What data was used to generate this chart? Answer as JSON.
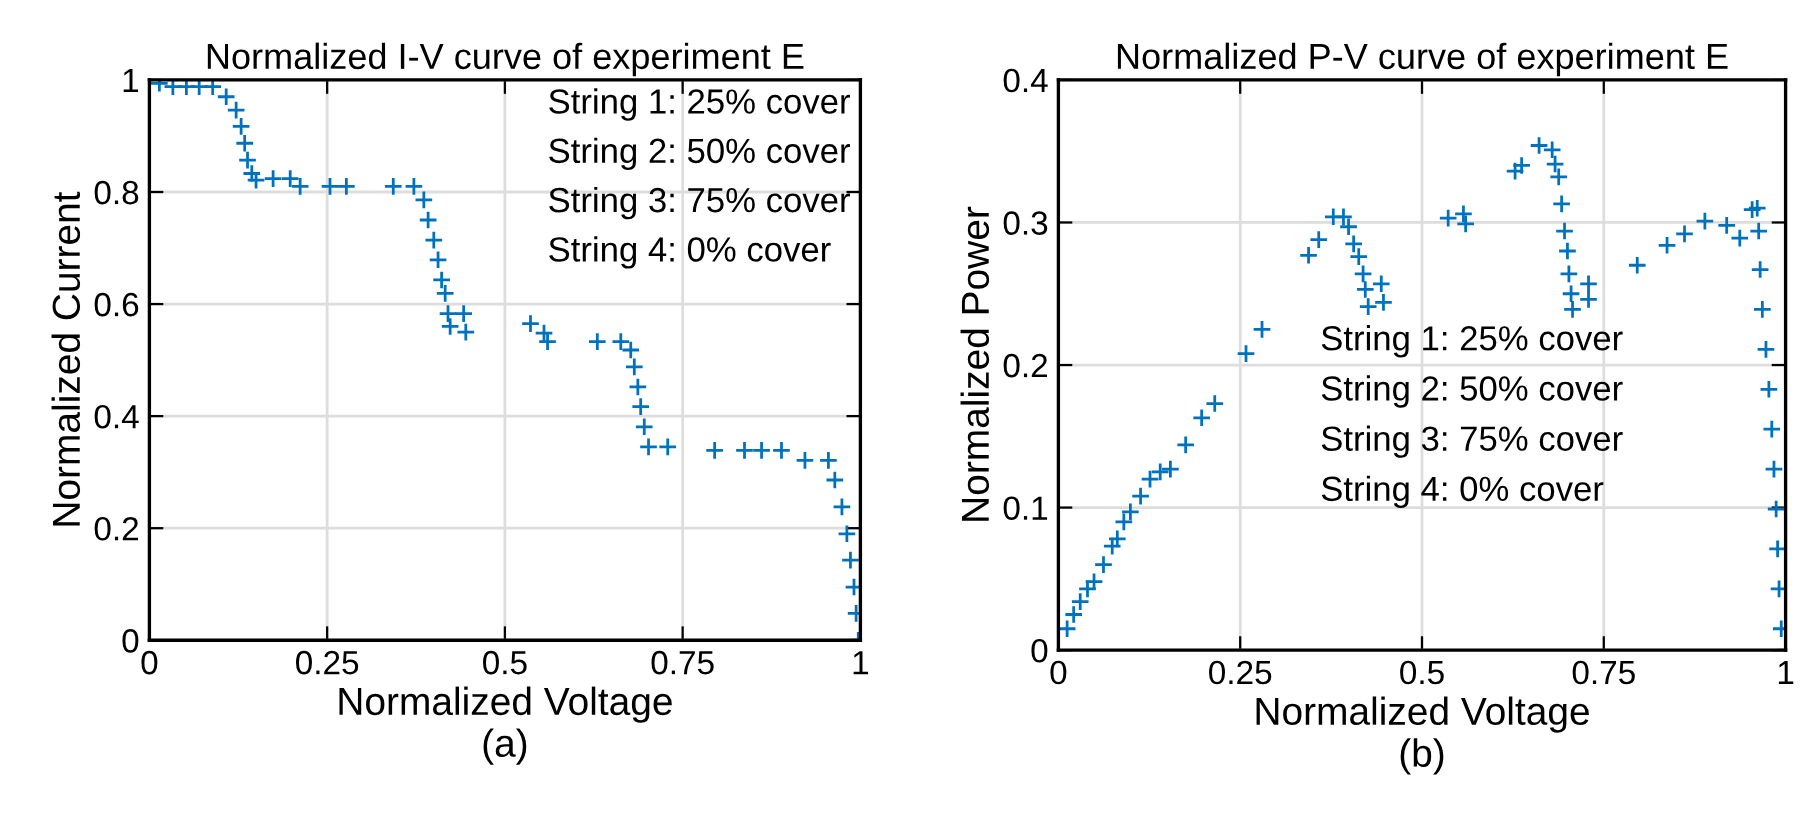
{
  "chart_data": [
    {
      "type": "scatter",
      "title": "Normalized I-V curve of experiment E",
      "xlabel": "Normalized Voltage\n(a)",
      "ylabel": "Normalized Current",
      "annotations": [
        "String 1: 25% cover",
        "String 2: 50% cover",
        "String 3: 75% cover",
        "String 4: 0% cover"
      ],
      "xlim": [
        0,
        1
      ],
      "ylim": [
        0,
        1
      ],
      "xticks": [
        0,
        0.25,
        0.5,
        0.75,
        1
      ],
      "yticks": [
        0,
        0.2,
        0.4,
        0.6,
        0.8,
        1
      ],
      "grid": true,
      "marker": "cross",
      "series": [
        {
          "color": "#0072bd",
          "x": [
            0.014,
            0.033,
            0.052,
            0.07,
            0.089,
            0.108,
            0.122,
            0.129,
            0.134,
            0.138,
            0.144,
            0.15,
            0.174,
            0.198,
            0.212,
            0.254,
            0.277,
            0.343,
            0.372,
            0.386,
            0.392,
            0.4,
            0.406,
            0.411,
            0.416,
            0.42,
            0.423,
            0.442,
            0.445,
            0.536,
            0.555,
            0.56,
            0.63,
            0.663,
            0.677,
            0.682,
            0.687,
            0.691,
            0.696,
            0.702,
            0.729,
            0.795,
            0.837,
            0.861,
            0.889,
            0.922,
            0.955,
            0.964,
            0.974,
            0.981,
            0.986,
            0.991,
            0.994,
            0.997
          ],
          "values": [
            0.994,
            0.988,
            0.988,
            0.988,
            0.988,
            0.97,
            0.946,
            0.917,
            0.887,
            0.857,
            0.833,
            0.821,
            0.824,
            0.824,
            0.81,
            0.81,
            0.81,
            0.81,
            0.81,
            0.786,
            0.75,
            0.714,
            0.679,
            0.643,
            0.619,
            0.583,
            0.56,
            0.583,
            0.55,
            0.565,
            0.548,
            0.533,
            0.533,
            0.533,
            0.518,
            0.488,
            0.452,
            0.417,
            0.381,
            0.345,
            0.345,
            0.339,
            0.339,
            0.339,
            0.339,
            0.321,
            0.321,
            0.286,
            0.238,
            0.19,
            0.143,
            0.095,
            0.048,
            0.0
          ]
        }
      ]
    },
    {
      "type": "scatter",
      "title": "Normalized P-V curve of experiment E",
      "xlabel": "Normalized Voltage\n(b)",
      "ylabel": "Normalized Power",
      "annotations": [
        "String 1: 25% cover",
        "String 2: 50% cover",
        "String 3: 75% cover",
        "String 4: 0% cover"
      ],
      "xlim": [
        0,
        1
      ],
      "ylim": [
        0,
        0.4
      ],
      "xticks": [
        0,
        0.25,
        0.5,
        0.75,
        1
      ],
      "yticks": [
        0,
        0.1,
        0.2,
        0.3,
        0.4
      ],
      "grid": true,
      "marker": "cross",
      "series": [
        {
          "color": "#0072bd",
          "x": [
            0.012,
            0.021,
            0.03,
            0.04,
            0.049,
            0.062,
            0.074,
            0.081,
            0.09,
            0.099,
            0.113,
            0.126,
            0.14,
            0.154,
            0.175,
            0.197,
            0.215,
            0.258,
            0.28,
            0.344,
            0.358,
            0.378,
            0.392,
            0.399,
            0.406,
            0.413,
            0.419,
            0.422,
            0.426,
            0.444,
            0.447,
            0.536,
            0.557,
            0.56,
            0.628,
            0.637,
            0.661,
            0.679,
            0.683,
            0.688,
            0.692,
            0.696,
            0.7,
            0.702,
            0.705,
            0.707,
            0.729,
            0.729,
            0.796,
            0.837,
            0.861,
            0.889,
            0.919,
            0.937,
            0.954,
            0.961,
            0.963,
            0.965,
            0.968,
            0.973,
            0.977,
            0.981,
            0.984,
            0.987,
            0.989,
            0.991,
            0.994,
            1.0
          ],
          "values": [
            0.015,
            0.025,
            0.034,
            0.043,
            0.048,
            0.06,
            0.073,
            0.078,
            0.09,
            0.097,
            0.108,
            0.12,
            0.125,
            0.127,
            0.144,
            0.163,
            0.173,
            0.208,
            0.225,
            0.277,
            0.288,
            0.304,
            0.304,
            0.297,
            0.285,
            0.276,
            0.264,
            0.253,
            0.241,
            0.257,
            0.244,
            0.303,
            0.306,
            0.299,
            0.336,
            0.34,
            0.354,
            0.351,
            0.341,
            0.332,
            0.313,
            0.294,
            0.28,
            0.264,
            0.25,
            0.239,
            0.257,
            0.246,
            0.27,
            0.284,
            0.292,
            0.301,
            0.298,
            0.289,
            0.309,
            0.31,
            0.294,
            0.267,
            0.239,
            0.211,
            0.183,
            0.155,
            0.127,
            0.099,
            0.071,
            0.043,
            0.015,
            0.0
          ]
        }
      ]
    }
  ]
}
